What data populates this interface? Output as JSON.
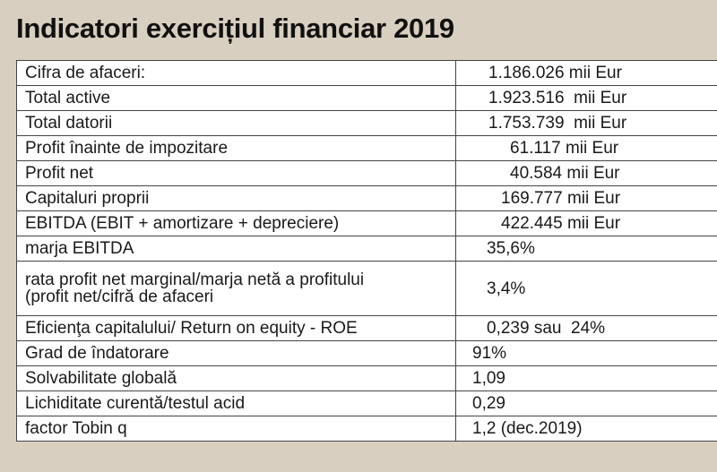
{
  "title": "Indicatori exercițiul financiar 2019",
  "rows": [
    {
      "label": "Cifra de afaceri:",
      "value": "1.186.026 mii Eur"
    },
    {
      "label": "Total active",
      "value": "1.923.516  mii Eur"
    },
    {
      "label": "Total datorii",
      "value": "1.753.739  mii Eur"
    },
    {
      "label": "Profit înainte de impozitare",
      "value": "61.117 mii Eur"
    },
    {
      "label": "Profit net",
      "value": "40.584 mii Eur"
    },
    {
      "label": "Capitaluri proprii",
      "value": "169.777 mii Eur"
    },
    {
      "label": "EBITDA (EBIT + amortizare + depreciere)",
      "value": "422.445 mii Eur"
    },
    {
      "label": "marja EBITDA",
      "value": "35,6%"
    },
    {
      "label_line1": "rata profit net marginal/marja netă a profitului",
      "label_line2": "(profit net/cifră de afaceri",
      "value": "3,4%"
    },
    {
      "label": "Eficienţa capitalului/ Return on equity - ROE",
      "value": "0,239 sau  24%"
    },
    {
      "label": "Grad de îndatorare",
      "value": "91%"
    },
    {
      "label": "Solvabilitate globală",
      "value": "1,09"
    },
    {
      "label": "Lichiditate curentă/testul acid",
      "value": "0,29"
    },
    {
      "label": "factor Tobin q",
      "value": "1,2 (dec.2019)"
    }
  ]
}
